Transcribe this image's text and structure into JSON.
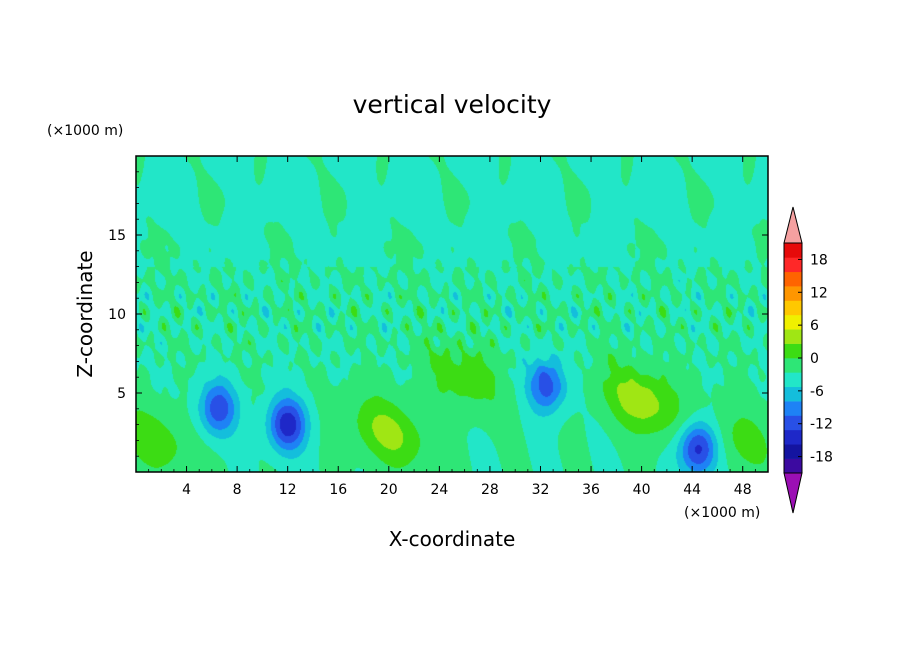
{
  "chart_data": {
    "type": "heatmap",
    "title": "vertical velocity",
    "xlabel": "X-coordinate",
    "ylabel": "Z-coordinate",
    "x_units": "(×1000 m)",
    "y_units": "(×1000 m)",
    "xlim": [
      0,
      50
    ],
    "ylim": [
      0,
      20
    ],
    "x_ticks": [
      4,
      8,
      12,
      16,
      20,
      24,
      28,
      32,
      36,
      40,
      44,
      48
    ],
    "y_ticks": [
      5,
      10,
      15
    ],
    "colorbar": {
      "levels": [
        -21,
        -18,
        -15,
        -12,
        -9,
        -6,
        -3,
        0,
        3,
        6,
        9,
        12,
        15,
        18,
        21
      ],
      "tick_labels": [
        "18",
        "12",
        "6",
        "0",
        "-6",
        "-12",
        "-18"
      ],
      "tick_values": [
        18,
        12,
        6,
        0,
        -6,
        -12,
        -18
      ],
      "colors": [
        "#3c0aa0",
        "#1414a0",
        "#1e28c8",
        "#2850e6",
        "#1e82f5",
        "#14bedc",
        "#22e6c8",
        "#2ee676",
        "#3cdc14",
        "#a0e614",
        "#f0f000",
        "#ffc800",
        "#ff9600",
        "#ff6400",
        "#ff2828",
        "#e60a0a"
      ],
      "under_color": "#9b0fb4",
      "over_color": "#f5a0a0",
      "extend": "both"
    },
    "features": [
      {
        "kind": "updraft",
        "x": 20,
        "z": 2.5,
        "peak": 7
      },
      {
        "kind": "updraft",
        "x": 40,
        "z": 4.5,
        "peak": 8
      },
      {
        "kind": "updraft",
        "x": 26,
        "z": 6,
        "peak": 5
      },
      {
        "kind": "updraft",
        "x": 1.5,
        "z": 2,
        "peak": 5
      },
      {
        "kind": "updraft",
        "x": 48,
        "z": 2,
        "peak": 4
      },
      {
        "kind": "downdraft",
        "x": 12,
        "z": 3,
        "peak": -14
      },
      {
        "kind": "downdraft",
        "x": 6.5,
        "z": 4,
        "peak": -11
      },
      {
        "kind": "downdraft",
        "x": 32.5,
        "z": 5.5,
        "peak": -11
      },
      {
        "kind": "downdraft",
        "x": 44.5,
        "z": 1.5,
        "peak": -14
      }
    ]
  }
}
